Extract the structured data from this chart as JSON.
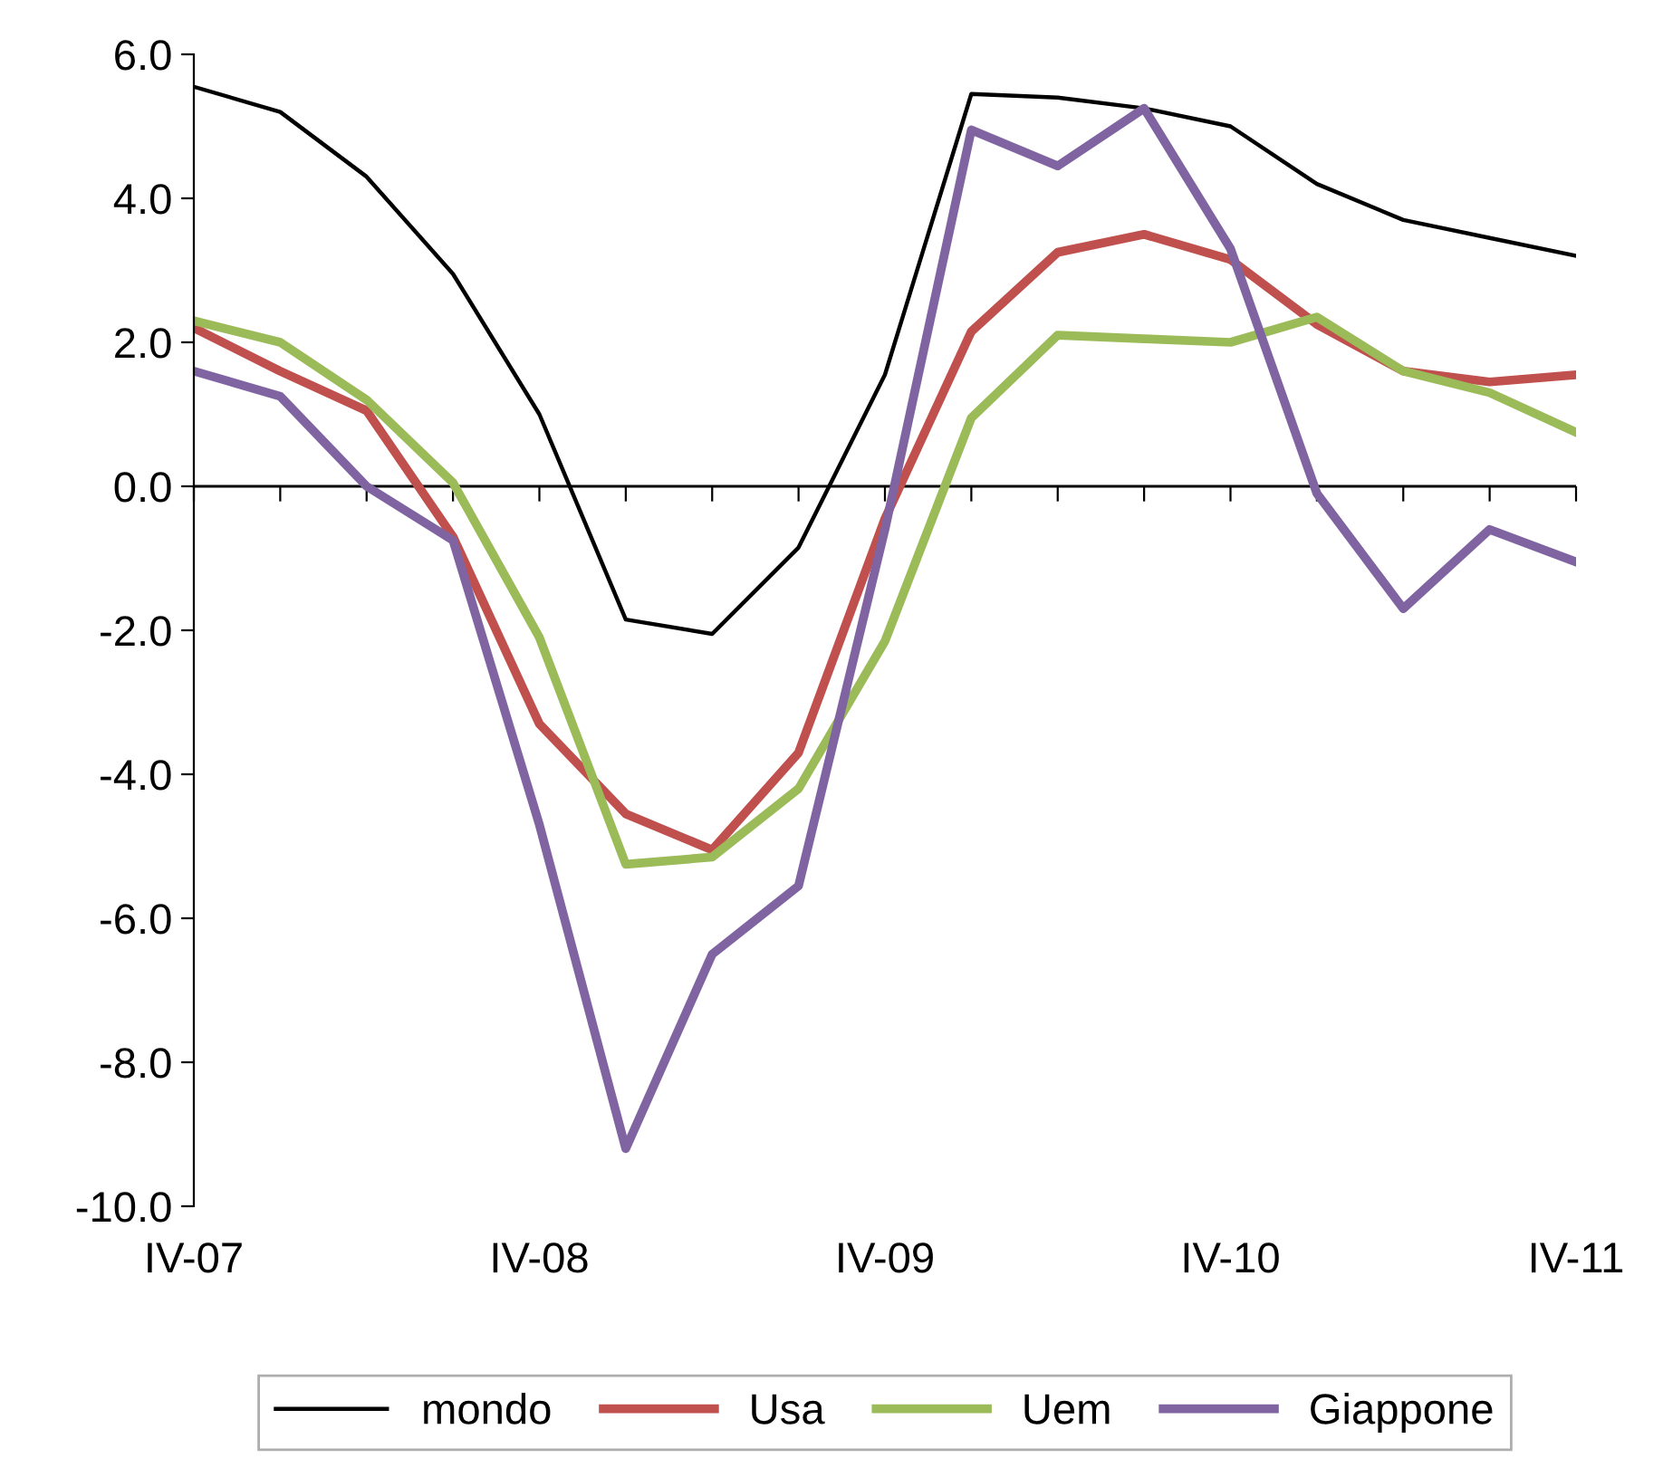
{
  "chart_data": {
    "type": "line",
    "categories": [
      "IV-07",
      null,
      null,
      null,
      "IV-08",
      null,
      null,
      null,
      "IV-09",
      null,
      null,
      null,
      "IV-10",
      null,
      null,
      null,
      "IV-11"
    ],
    "series": [
      {
        "name": "mondo",
        "color": "#000000",
        "values": [
          5.55,
          5.2,
          4.3,
          2.95,
          1.0,
          -1.85,
          -2.05,
          -0.85,
          1.55,
          5.45,
          5.4,
          5.25,
          5.0,
          4.2,
          3.7,
          3.45,
          3.2
        ]
      },
      {
        "name": "Usa",
        "color": "#c0504d",
        "values": [
          2.2,
          1.6,
          1.05,
          -0.7,
          -3.3,
          -4.55,
          -5.05,
          -3.7,
          -0.45,
          2.15,
          3.25,
          3.5,
          3.15,
          2.25,
          1.6,
          1.45,
          1.55
        ]
      },
      {
        "name": "Uem",
        "color": "#9bbb59",
        "values": [
          2.3,
          2.0,
          1.2,
          0.05,
          -2.1,
          -5.25,
          -5.15,
          -4.2,
          -2.15,
          0.95,
          2.1,
          2.05,
          2.0,
          2.35,
          1.6,
          1.3,
          0.75
        ]
      },
      {
        "name": "Giappone",
        "color": "#8064a2",
        "values": [
          1.6,
          1.25,
          0.0,
          -0.75,
          -4.7,
          -9.2,
          -6.5,
          -5.55,
          -0.6,
          4.95,
          4.45,
          5.25,
          3.3,
          -0.1,
          -1.7,
          -0.6,
          -1.05
        ]
      }
    ],
    "ylim": [
      -10,
      6
    ],
    "yticks": [
      {
        "value": -10,
        "label": "-10.0"
      },
      {
        "value": -8,
        "label": "-8.0"
      },
      {
        "value": -6,
        "label": "-6.0"
      },
      {
        "value": -4,
        "label": "-4.0"
      },
      {
        "value": -2,
        "label": "-2.0"
      },
      {
        "value": 0,
        "label": "0.0"
      },
      {
        "value": 2,
        "label": "2.0"
      },
      {
        "value": 4,
        "label": "4.0"
      },
      {
        "value": 6,
        "label": "6.0"
      }
    ],
    "ref_lines": [
      {
        "axis": "y",
        "value": 0,
        "color": "#000000"
      }
    ],
    "grid": false,
    "legend": "bottom",
    "marker": "none",
    "line_style": "solid"
  }
}
